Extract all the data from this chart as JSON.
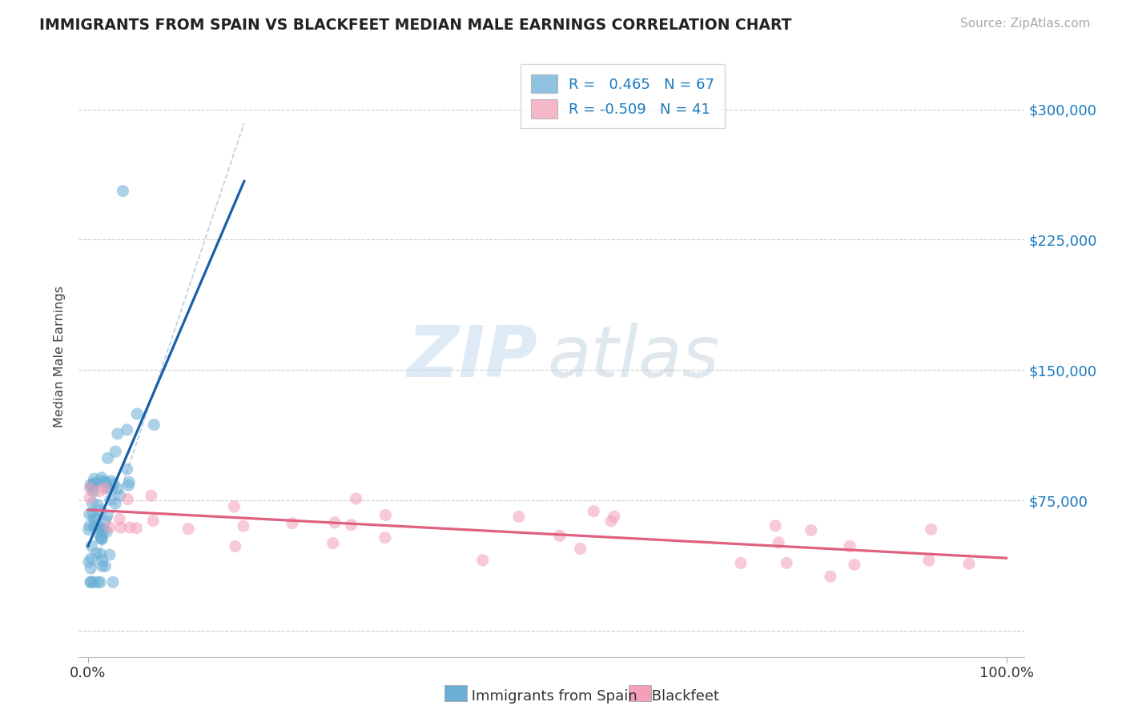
{
  "title": "IMMIGRANTS FROM SPAIN VS BLACKFEET MEDIAN MALE EARNINGS CORRELATION CHART",
  "source": "Source: ZipAtlas.com",
  "ylabel": "Median Male Earnings",
  "xlim": [
    -1,
    102
  ],
  "ylim": [
    -15000,
    330000
  ],
  "yticks": [
    0,
    75000,
    150000,
    225000,
    300000
  ],
  "xticks": [
    0,
    100
  ],
  "xtick_labels": [
    "0.0%",
    "100.0%"
  ],
  "ytick_labels_right": [
    "",
    "$75,000",
    "$150,000",
    "$225,000",
    "$300,000"
  ],
  "legend_r_blue": " 0.465",
  "legend_n_blue": "67",
  "legend_r_pink": "-0.509",
  "legend_n_pink": "41",
  "blue_color": "#6aaed6",
  "pink_color": "#f4a0b8",
  "blue_line_color": "#1a5fa8",
  "pink_line_color": "#e06080",
  "diag_line_color": "#b0c4de",
  "background_color": "#ffffff",
  "grid_color": "#cccccc",
  "title_color": "#222222",
  "source_color": "#aaaaaa",
  "right_tick_color": "#1a7abf",
  "watermark_zip_color": "#c8dff0",
  "watermark_atlas_color": "#b8ccd8"
}
